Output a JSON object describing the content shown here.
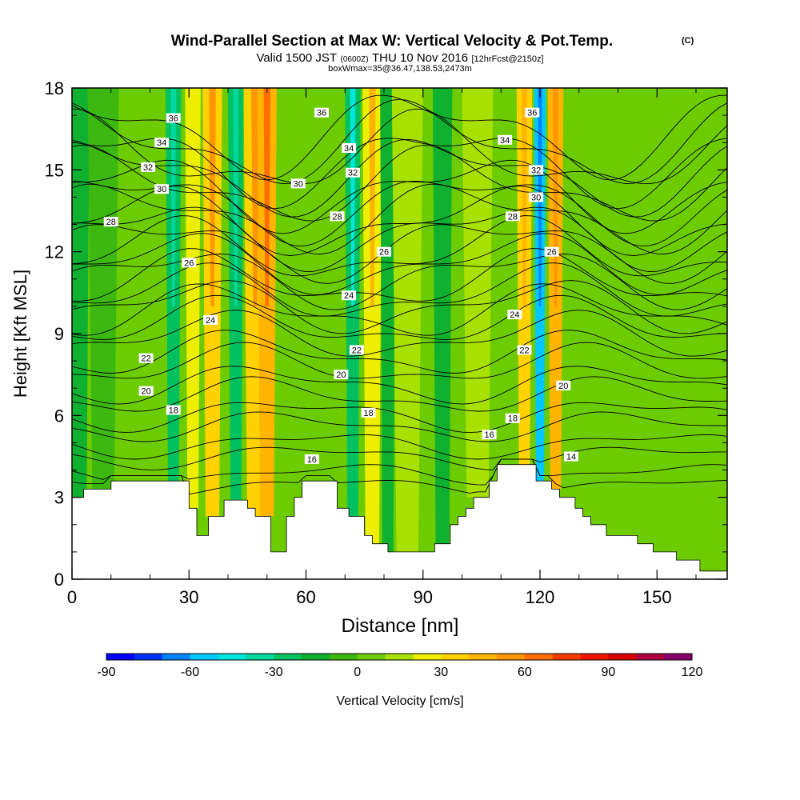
{
  "chart_data": {
    "type": "heatmap",
    "title": "Wind-Parallel Section at Max W: Vertical Velocity & Pot.Temp.",
    "title_units": "(C)",
    "subtitle_parts": [
      "Valid 1500 JST",
      "(0600Z)",
      "THU 10 Nov 2016",
      "[12hrFcst@2150z]"
    ],
    "subtitle2": "boxWmax=35@36.47,138.53,2473m",
    "xlabel": "Distance [nm]",
    "ylabel": "Height [Kft MSL]",
    "xlim": [
      0,
      168
    ],
    "ylim": [
      0,
      18
    ],
    "x_ticks": [
      "0",
      "30",
      "60",
      "90",
      "120",
      "150"
    ],
    "x_tick_values": [
      0,
      30,
      60,
      90,
      120,
      150
    ],
    "y_ticks": [
      "0",
      "3",
      "6",
      "9",
      "12",
      "15",
      "18"
    ],
    "y_tick_values": [
      0,
      3,
      6,
      9,
      12,
      15,
      18
    ],
    "colorbar": {
      "label": "Vertical Velocity [cm/s]",
      "tick_labels": [
        "-90",
        "-60",
        "-30",
        "0",
        "30",
        "60",
        "90",
        "120"
      ],
      "tick_values": [
        -90,
        -60,
        -30,
        0,
        30,
        60,
        90,
        120
      ],
      "bounds": [
        -90,
        120
      ],
      "step": 10,
      "colors": [
        "#0000ff",
        "#0032ff",
        "#0082ff",
        "#00c8ff",
        "#00e6dc",
        "#00d8a0",
        "#00c060",
        "#10b030",
        "#3cb810",
        "#6ccc00",
        "#a8e000",
        "#eeee00",
        "#ffd200",
        "#ffb400",
        "#ff9600",
        "#ff6e00",
        "#ff3c00",
        "#f01400",
        "#d80000",
        "#b00040",
        "#880068"
      ]
    },
    "velocity_columns": [
      {
        "x": 2,
        "w": 5,
        "v": -20
      },
      {
        "x": 8,
        "w": 8,
        "v": -10
      },
      {
        "x": 20,
        "w": 8,
        "v": 5
      },
      {
        "x": 26,
        "w": 4,
        "v": -25
      },
      {
        "x": 31,
        "w": 4,
        "v": 20
      },
      {
        "x": 36,
        "w": 5,
        "v": 35
      },
      {
        "x": 42,
        "w": 4,
        "v": -25
      },
      {
        "x": 47,
        "w": 6,
        "v": 35
      },
      {
        "x": 50,
        "w": 5,
        "v": 45
      },
      {
        "x": 57,
        "w": 5,
        "v": 5
      },
      {
        "x": 65,
        "w": 5,
        "v": 5
      },
      {
        "x": 72,
        "w": 4,
        "v": -30
      },
      {
        "x": 77,
        "w": 5,
        "v": 25
      },
      {
        "x": 81,
        "w": 4,
        "v": -15
      },
      {
        "x": 86,
        "w": 8,
        "v": 15
      },
      {
        "x": 95,
        "w": 5,
        "v": -15
      },
      {
        "x": 104,
        "w": 8,
        "v": 15
      },
      {
        "x": 111,
        "w": 4,
        "v": 5
      },
      {
        "x": 116,
        "w": 4,
        "v": 30
      },
      {
        "x": 120,
        "w": 3,
        "v": -55
      },
      {
        "x": 124,
        "w": 4,
        "v": 40
      },
      {
        "x": 132,
        "w": 10,
        "v": 5
      },
      {
        "x": 150,
        "w": 12,
        "v": 0
      }
    ],
    "terrain": [
      [
        0,
        3.0
      ],
      [
        3,
        3.0
      ],
      [
        3,
        3.3
      ],
      [
        10,
        3.3
      ],
      [
        10,
        3.6
      ],
      [
        30,
        3.6
      ],
      [
        30,
        2.6
      ],
      [
        32,
        2.6
      ],
      [
        32,
        1.6
      ],
      [
        35,
        1.6
      ],
      [
        35,
        2.3
      ],
      [
        39,
        2.3
      ],
      [
        39,
        2.9
      ],
      [
        45,
        2.9
      ],
      [
        45,
        2.6
      ],
      [
        47,
        2.6
      ],
      [
        47,
        2.3
      ],
      [
        51,
        2.3
      ],
      [
        51,
        1.0
      ],
      [
        55,
        1.0
      ],
      [
        55,
        2.3
      ],
      [
        57,
        2.3
      ],
      [
        57,
        3.0
      ],
      [
        59,
        3.0
      ],
      [
        59,
        3.6
      ],
      [
        68,
        3.6
      ],
      [
        68,
        2.6
      ],
      [
        71,
        2.6
      ],
      [
        71,
        2.3
      ],
      [
        75,
        2.3
      ],
      [
        75,
        1.6
      ],
      [
        77,
        1.6
      ],
      [
        77,
        1.3
      ],
      [
        81,
        1.3
      ],
      [
        81,
        1.0
      ],
      [
        93,
        1.0
      ],
      [
        93,
        1.3
      ],
      [
        97,
        1.3
      ],
      [
        97,
        2.0
      ],
      [
        99,
        2.0
      ],
      [
        99,
        2.3
      ],
      [
        101,
        2.3
      ],
      [
        101,
        2.6
      ],
      [
        103,
        2.6
      ],
      [
        103,
        3.0
      ],
      [
        107,
        3.0
      ],
      [
        107,
        3.6
      ],
      [
        109,
        3.6
      ],
      [
        109,
        4.2
      ],
      [
        119,
        4.2
      ],
      [
        119,
        3.6
      ],
      [
        123,
        3.6
      ],
      [
        123,
        3.3
      ],
      [
        125,
        3.3
      ],
      [
        125,
        3.0
      ],
      [
        129,
        3.0
      ],
      [
        129,
        2.6
      ],
      [
        131,
        2.6
      ],
      [
        131,
        2.3
      ],
      [
        133,
        2.3
      ],
      [
        133,
        2.0
      ],
      [
        137,
        2.0
      ],
      [
        137,
        1.6
      ],
      [
        145,
        1.6
      ],
      [
        145,
        1.3
      ],
      [
        149,
        1.3
      ],
      [
        149,
        1.0
      ],
      [
        155,
        1.0
      ],
      [
        155,
        0.7
      ],
      [
        161,
        0.7
      ],
      [
        161,
        0.3
      ],
      [
        168,
        0.3
      ]
    ],
    "theta_levels": [
      14,
      16,
      18,
      20,
      22,
      24,
      26,
      28,
      30,
      32,
      34,
      36
    ],
    "contour_labels": [
      {
        "text": "36",
        "x": 26,
        "y": 16.9
      },
      {
        "text": "34",
        "x": 23,
        "y": 16.0
      },
      {
        "text": "32",
        "x": 19.5,
        "y": 15.1
      },
      {
        "text": "30",
        "x": 23,
        "y": 14.3
      },
      {
        "text": "28",
        "x": 10,
        "y": 13.1
      },
      {
        "text": "26",
        "x": 30,
        "y": 11.6
      },
      {
        "text": "24",
        "x": 35.5,
        "y": 9.5
      },
      {
        "text": "22",
        "x": 19,
        "y": 8.1
      },
      {
        "text": "20",
        "x": 19,
        "y": 6.9
      },
      {
        "text": "18",
        "x": 26,
        "y": 6.2
      },
      {
        "text": "36",
        "x": 64,
        "y": 17.1
      },
      {
        "text": "34",
        "x": 71,
        "y": 15.8
      },
      {
        "text": "32",
        "x": 72,
        "y": 14.9
      },
      {
        "text": "30",
        "x": 58,
        "y": 14.5
      },
      {
        "text": "28",
        "x": 68,
        "y": 13.3
      },
      {
        "text": "26",
        "x": 80,
        "y": 12.0
      },
      {
        "text": "24",
        "x": 71,
        "y": 10.4
      },
      {
        "text": "22",
        "x": 73,
        "y": 8.4
      },
      {
        "text": "20",
        "x": 69,
        "y": 7.5
      },
      {
        "text": "18",
        "x": 76,
        "y": 6.1
      },
      {
        "text": "16",
        "x": 61.5,
        "y": 4.4
      },
      {
        "text": "34",
        "x": 111,
        "y": 16.1
      },
      {
        "text": "36",
        "x": 118,
        "y": 17.1
      },
      {
        "text": "32",
        "x": 119,
        "y": 15.0
      },
      {
        "text": "30",
        "x": 119,
        "y": 14.0
      },
      {
        "text": "28",
        "x": 113,
        "y": 13.3
      },
      {
        "text": "26",
        "x": 123,
        "y": 12.0
      },
      {
        "text": "24",
        "x": 113.5,
        "y": 9.7
      },
      {
        "text": "22",
        "x": 116,
        "y": 8.4
      },
      {
        "text": "20",
        "x": 126,
        "y": 7.1
      },
      {
        "text": "18",
        "x": 113,
        "y": 5.9
      },
      {
        "text": "16",
        "x": 107,
        "y": 5.3
      },
      {
        "text": "14",
        "x": 128,
        "y": 4.5
      }
    ]
  }
}
